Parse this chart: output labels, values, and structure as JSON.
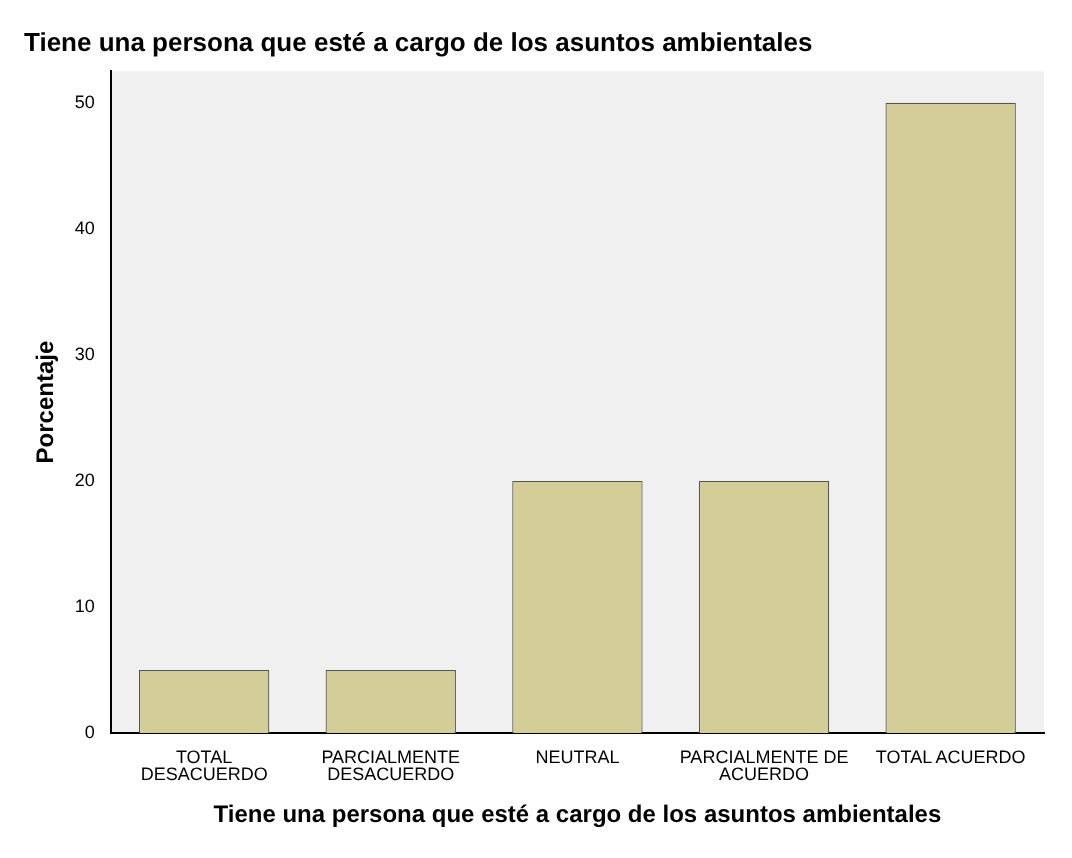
{
  "chart_data": {
    "type": "bar",
    "title": "Tiene una persona que esté a cargo de los asuntos ambientales",
    "xlabel": "Tiene una persona que esté a cargo de los asuntos ambientales",
    "ylabel": "Porcentaje",
    "categories": [
      "TOTAL\nDESACUERDO",
      "PARCIALMENTE\nDESACUERDO",
      "NEUTRAL",
      "PARCIALMENTE DE\nACUERDO",
      "TOTAL ACUERDO"
    ],
    "values": [
      5,
      5,
      20,
      20,
      50
    ],
    "color": "#d3ce98",
    "ylim": [
      0,
      52.5
    ],
    "yticks": [
      0,
      10,
      20,
      30,
      40,
      50
    ],
    "grid": false,
    "legend": false
  }
}
